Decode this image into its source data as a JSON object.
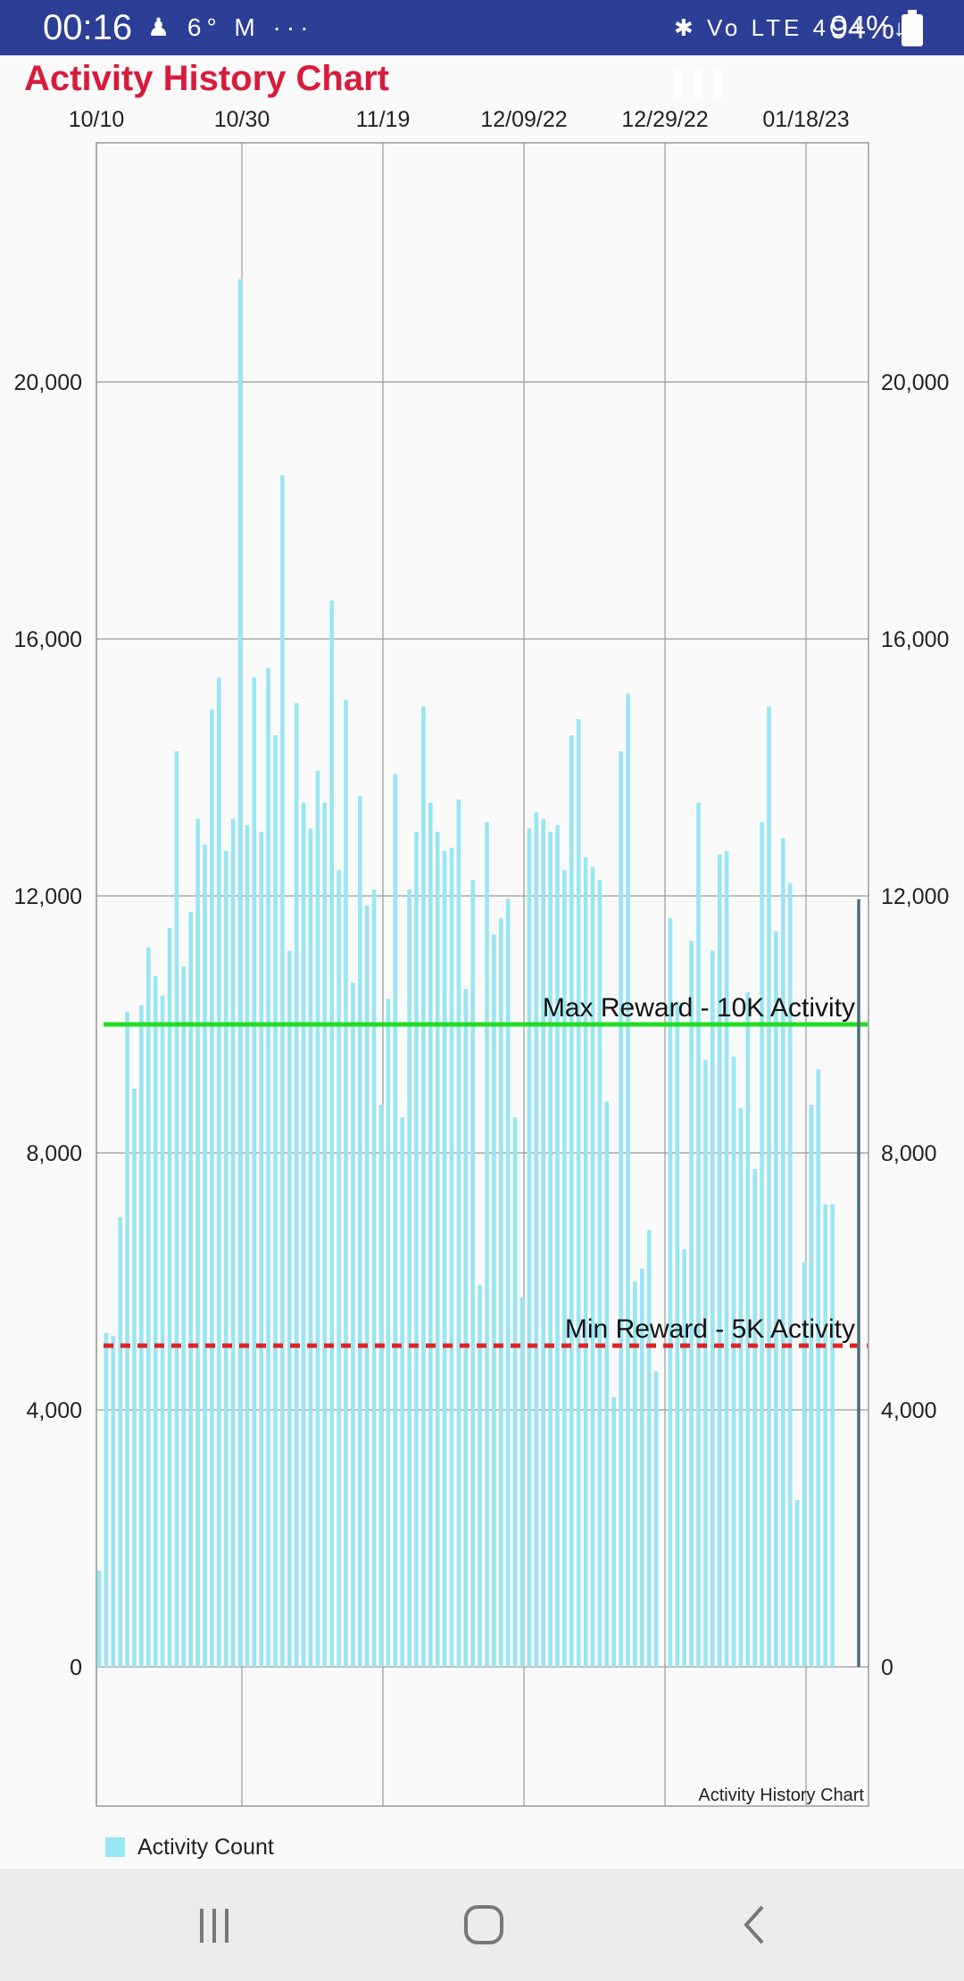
{
  "status_bar": {
    "time": "00:16",
    "left_icons": "♟ 6° M ···",
    "right_icons": "✱ Vo LTE 4G+ ↑↓ ▌▌▌",
    "battery": "94%"
  },
  "page": {
    "title": "Activity History Chart"
  },
  "chart_data": {
    "type": "bar",
    "title": "Activity History Chart",
    "description_label": "Activity History Chart",
    "x_start_date": "2022-10-10",
    "x_tick_labels": [
      "10/10",
      "10/30",
      "11/19",
      "12/09/22",
      "12/29/22",
      "01/18/23"
    ],
    "ylim": [
      -2000,
      23800
    ],
    "y_tick_values": [
      0,
      4000,
      8000,
      12000,
      16000,
      20000
    ],
    "y_tick_labels": [
      "0",
      "4,000",
      "8,000",
      "12,000",
      "16,000",
      "20,000"
    ],
    "grid": true,
    "dual_y_axis": true,
    "legend_position": "bottom-left",
    "series": [
      {
        "name": "Activity Count",
        "color": "#99e6f4",
        "values": [
          1500,
          5200,
          5150,
          7000,
          10200,
          9000,
          10300,
          11200,
          10750,
          10450,
          11500,
          14250,
          10900,
          11750,
          13200,
          12800,
          14900,
          15400,
          12700,
          13200,
          21600,
          13100,
          15400,
          13000,
          15550,
          14500,
          18550,
          11150,
          15000,
          13450,
          13050,
          13950,
          13450,
          16600,
          12400,
          15050,
          10650,
          13550,
          11850,
          12100,
          8750,
          10400,
          13900,
          8550,
          12100,
          13000,
          14950,
          13450,
          13000,
          12700,
          12750,
          13500,
          10550,
          12250,
          5950,
          13150,
          11400,
          11650,
          11950,
          8550,
          5750,
          13050,
          13300,
          13200,
          13000,
          13100,
          12400,
          14500,
          14750,
          12600,
          12450,
          12250,
          8800,
          4200,
          14250,
          15150,
          6000,
          6200,
          6800,
          4600,
          0,
          11650,
          10350,
          6500,
          11300,
          13450,
          9450,
          11150,
          12650,
          12700,
          9500,
          8700,
          10500,
          7750,
          13150,
          14950,
          11450,
          12900,
          12200,
          2600,
          6300,
          8750,
          9300,
          7200,
          7200
        ]
      }
    ],
    "reference_lines": [
      {
        "name": "max-reward",
        "label": "Max Reward - 10K Activity",
        "value": 10000,
        "color": "#22dd22",
        "style": "solid"
      },
      {
        "name": "min-reward",
        "label": "Min Reward - 5K Activity",
        "value": 5000,
        "color": "#dd2222",
        "style": "dashed"
      }
    ],
    "cursor_marker": {
      "value": 11950,
      "color": "#4a7078"
    }
  },
  "legend": {
    "items": [
      {
        "label": "Activity Count",
        "color": "#99e6f4"
      }
    ]
  }
}
